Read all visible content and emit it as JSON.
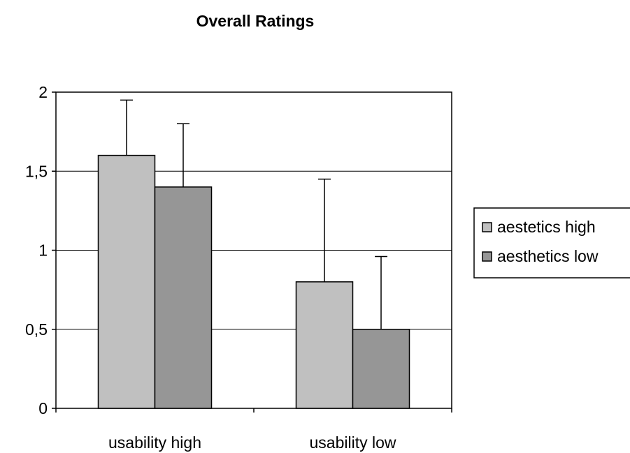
{
  "chart_data": {
    "type": "bar",
    "title": "Overall Ratings",
    "xlabel": "",
    "ylabel": "",
    "categories": [
      "usability high",
      "usability low"
    ],
    "series": [
      {
        "name": "aestetics high",
        "values": [
          1.6,
          0.8
        ],
        "error": [
          0.35,
          0.65
        ],
        "color": "#c0c0c0"
      },
      {
        "name": "aesthetics low",
        "values": [
          1.4,
          0.5
        ],
        "error": [
          0.4,
          0.46
        ],
        "color": "#969696"
      }
    ],
    "ylim": [
      0,
      2
    ],
    "yticks": [
      0,
      0.5,
      1,
      1.5,
      2
    ],
    "ytick_labels": [
      "0",
      "0,5",
      "1",
      "1,5",
      "2"
    ],
    "grid": true,
    "legend_position": "right"
  }
}
